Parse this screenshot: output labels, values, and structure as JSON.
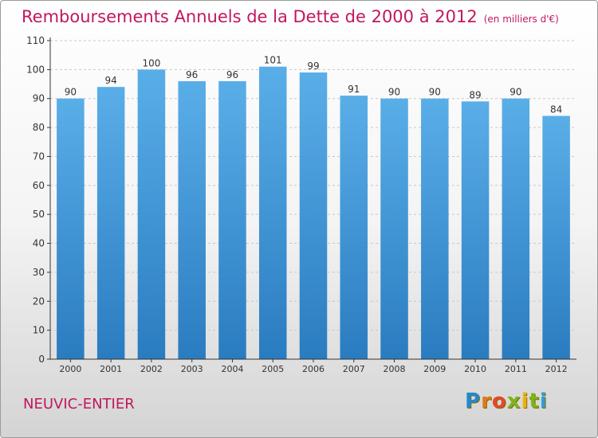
{
  "header": {
    "title": "Remboursements Annuels de la Dette de 2000 à 2012",
    "unit": "(en milliers d'€)"
  },
  "footer": {
    "place": "NEUVIC-ENTIER",
    "logo": "Proxiti"
  },
  "colors": {
    "title": "#c0185e",
    "bar_top": "#5aaee8",
    "bar_bottom": "#2a7cc0",
    "axis": "#333333",
    "grid": "#c8c8c8"
  },
  "chart_data": {
    "type": "bar",
    "categories": [
      "2000",
      "2001",
      "2002",
      "2003",
      "2004",
      "2005",
      "2006",
      "2007",
      "2008",
      "2009",
      "2010",
      "2011",
      "2012"
    ],
    "values": [
      90,
      94,
      100,
      96,
      96,
      101,
      99,
      91,
      90,
      90,
      89,
      90,
      84
    ],
    "title": "Remboursements Annuels de la Dette de 2000 à 2012",
    "subtitle": "(en milliers d'€)",
    "xlabel": "",
    "ylabel": "",
    "ylim": [
      0,
      110
    ],
    "yticks": [
      0,
      10,
      20,
      30,
      40,
      50,
      60,
      70,
      80,
      90,
      100,
      110
    ],
    "grid": true,
    "legend": "none"
  }
}
